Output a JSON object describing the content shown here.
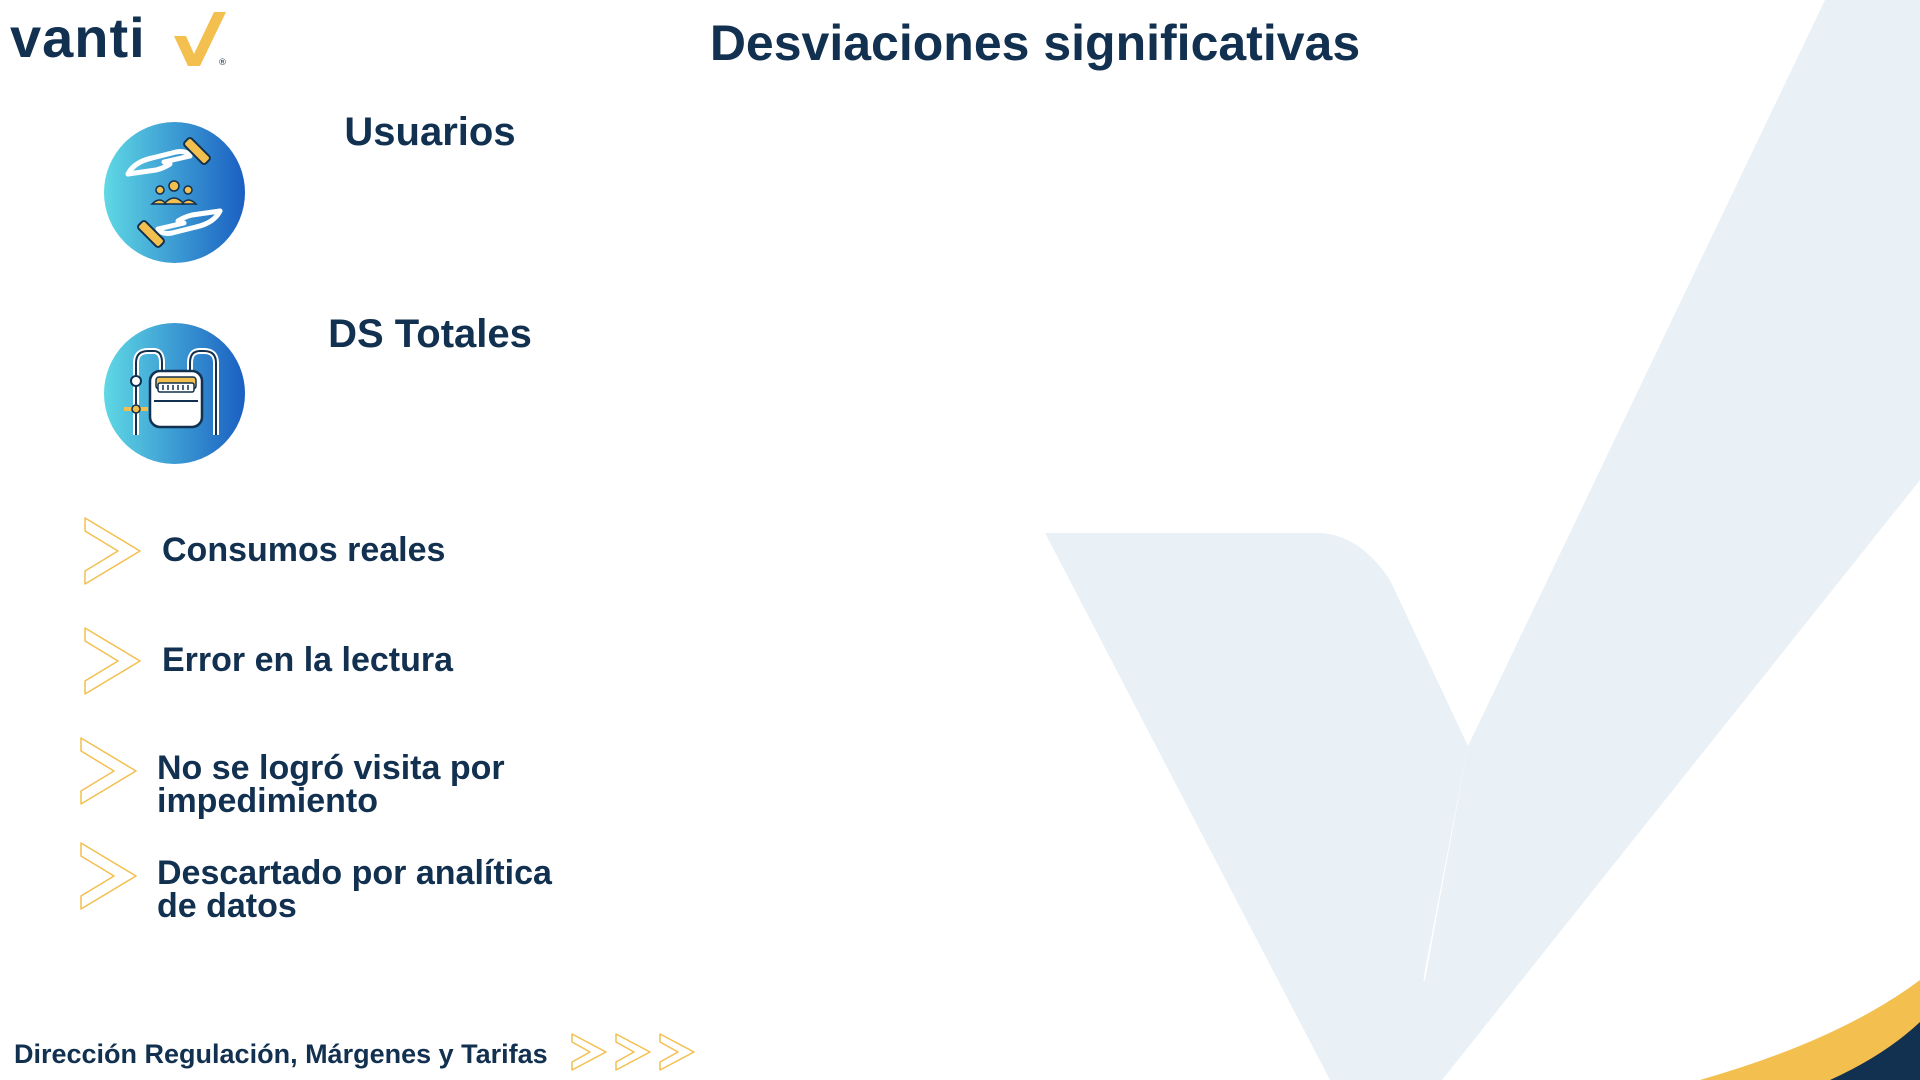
{
  "brand": {
    "logo_text": "vanti",
    "logo_mark": "®",
    "colors": {
      "navy": "#12304f",
      "gold": "#f3bf4f",
      "cyan": "#5fd8e4",
      "blue": "#1a5fc2",
      "watermark": "#e9f1f7"
    }
  },
  "header": {
    "title": "Desviaciones significativas"
  },
  "sections": [
    {
      "title": "Usuarios",
      "icon": "hands-users-icon"
    },
    {
      "title": "DS Totales",
      "icon": "gas-meter-icon"
    }
  ],
  "bullets": [
    {
      "label_lines": [
        "Consumos reales"
      ],
      "icon": "chevron-right-icon"
    },
    {
      "label_lines": [
        "Error en la lectura"
      ],
      "icon": "chevron-right-icon"
    },
    {
      "label_lines": [
        "No se logró visita por",
        "impedimiento"
      ],
      "icon": "chevron-right-icon"
    },
    {
      "label_lines": [
        "Descartado por analítica",
        "de datos"
      ],
      "icon": "chevron-right-icon"
    }
  ],
  "footer": {
    "text": "Dirección Regulación, Márgenes y Tarifas",
    "arrows_icon": "triple-chevron-icon"
  }
}
